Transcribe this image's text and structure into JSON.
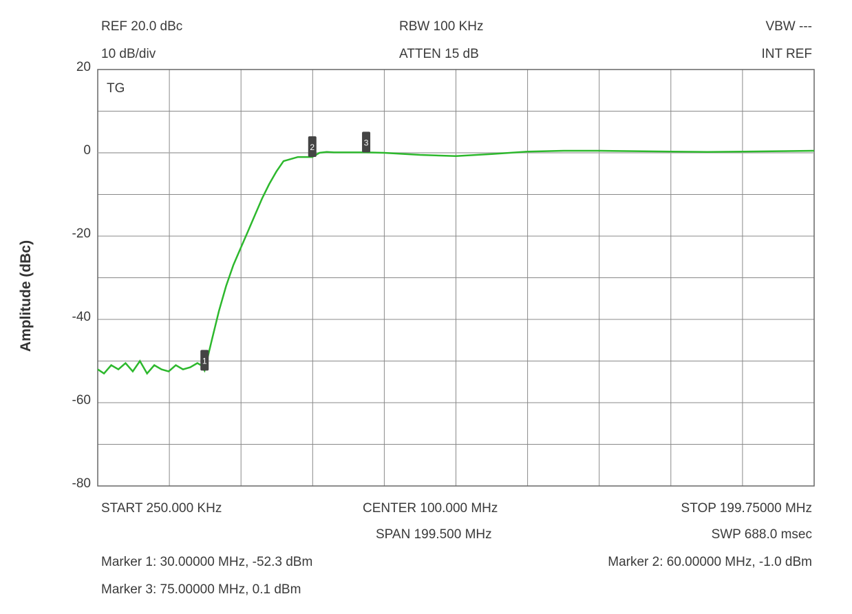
{
  "header": {
    "ref": "REF 20.0 dBc",
    "scale": "10 dB/div",
    "rbw": "RBW 100 KHz",
    "atten": "ATTEN 15 dB",
    "vbw": "VBW ---",
    "int_ref": "INT REF"
  },
  "plot": {
    "tg_label": "TG",
    "ylabel": "Amplitude (dBc)",
    "yticks": [
      "20",
      "0",
      "-20",
      "-40",
      "-60",
      "-80"
    ],
    "trace_color": "#2db82d"
  },
  "footer": {
    "start": "START 250.000 KHz",
    "center": "CENTER 100.000 MHz",
    "stop": "STOP 199.75000 MHz",
    "span": "SPAN 199.500 MHz",
    "swp": "SWP 688.0 msec",
    "marker1": "Marker 1: 30.00000 MHz, -52.3 dBm",
    "marker2": "Marker 2: 60.00000 MHz, -1.0 dBm",
    "marker3": "Marker 3: 75.00000 MHz, 0.1 dBm"
  },
  "chart_data": {
    "type": "line",
    "xlabel": "",
    "ylabel": "Amplitude (dBc)",
    "xlim": [
      0.25,
      199.75
    ],
    "ylim": [
      -80,
      20
    ],
    "grid": true,
    "series": [
      {
        "x": [
          0.25,
          2,
          4,
          6,
          8,
          10,
          12,
          14,
          16,
          18,
          20,
          22,
          24,
          26,
          28,
          29,
          30,
          32,
          34,
          36,
          38,
          40,
          42,
          44,
          46,
          48,
          50,
          52,
          54,
          56,
          58,
          60,
          62,
          64,
          66,
          68,
          70,
          75,
          80,
          90,
          100,
          110,
          120,
          130,
          140,
          150,
          160,
          170,
          180,
          190,
          199.75
        ],
        "y": [
          -52,
          -53,
          -51,
          -52,
          -50.5,
          -52.5,
          -50,
          -53,
          -51,
          -52,
          -52.5,
          -51,
          -52,
          -51.5,
          -50.5,
          -51,
          -52.3,
          -45,
          -38,
          -32,
          -27,
          -23,
          -19,
          -15,
          -11,
          -7.5,
          -4.5,
          -2,
          -1.5,
          -1,
          -1,
          -1,
          0,
          0.2,
          0.1,
          0.1,
          0.1,
          0.1,
          0,
          -0.5,
          -0.8,
          -0.3,
          0.3,
          0.5,
          0.5,
          0.4,
          0.3,
          0.2,
          0.3,
          0.4,
          0.5
        ]
      }
    ],
    "markers": [
      {
        "label": "1",
        "x": 30,
        "y": -52.3
      },
      {
        "label": "2",
        "x": 60,
        "y": -1.0
      },
      {
        "label": "3",
        "x": 75,
        "y": 0.1
      }
    ]
  }
}
